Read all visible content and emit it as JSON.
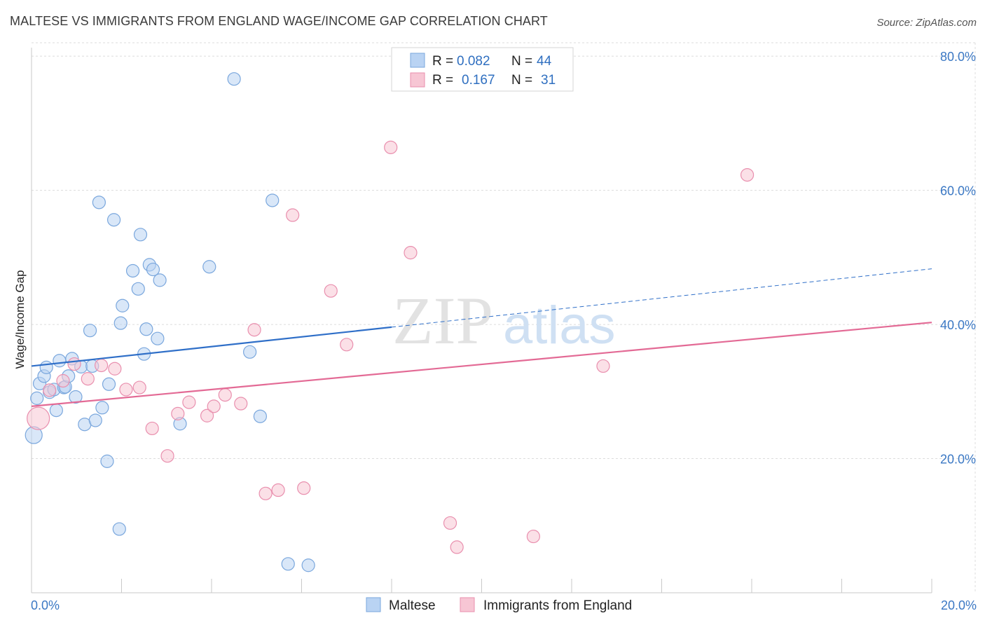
{
  "title": "MALTESE VS IMMIGRANTS FROM ENGLAND WAGE/INCOME GAP CORRELATION CHART",
  "source": "Source: ZipAtlas.com",
  "watermark": {
    "zip": "ZIP",
    "atlas": "atlas"
  },
  "colors": {
    "blue_fill": "#b9d3f3",
    "blue_stroke": "#7aa7dd",
    "blue_line": "#2f6fc8",
    "pink_fill": "#f7c6d4",
    "pink_stroke": "#e98fae",
    "pink_line": "#e36a95",
    "tick": "#3b78c4",
    "grid": "#dcdcdc"
  },
  "legend": [
    {
      "r_label": "R =",
      "r_value": "0.082",
      "n_label": "N =",
      "n_value": "44"
    },
    {
      "r_label": "R =",
      "r_value": "0.167",
      "n_label": "N =",
      "n_value": "31"
    }
  ],
  "chart_data": {
    "type": "scatter",
    "title": "MALTESE VS IMMIGRANTS FROM ENGLAND WAGE/INCOME GAP CORRELATION CHART",
    "xlabel": "",
    "ylabel": "Wage/Income Gap",
    "xlim": [
      0,
      20
    ],
    "ylim": [
      0,
      82
    ],
    "x_tick_labels": [
      "0.0%",
      "20.0%"
    ],
    "y_ticks": [
      20,
      40,
      60,
      80
    ],
    "y_tick_labels": [
      "20.0%",
      "40.0%",
      "60.0%",
      "80.0%"
    ],
    "grid": true,
    "series": [
      {
        "name": "Maltese",
        "color": "blue",
        "trend": {
          "x0": 0,
          "y0": 33.8,
          "x1": 8.0,
          "y1": 39.6,
          "dashed_to_x": 20,
          "dashed_to_y": 48.3
        },
        "points": [
          [
            0.05,
            23.5,
            12
          ],
          [
            0.12,
            29.0,
            9
          ],
          [
            0.18,
            31.2,
            9
          ],
          [
            0.28,
            32.3,
            9
          ],
          [
            0.33,
            33.6,
            9
          ],
          [
            0.4,
            29.9,
            9
          ],
          [
            0.5,
            30.3,
            9
          ],
          [
            0.55,
            27.2,
            9
          ],
          [
            0.62,
            34.6,
            9
          ],
          [
            0.72,
            30.6,
            9
          ],
          [
            0.75,
            30.7,
            9
          ],
          [
            0.82,
            32.3,
            9
          ],
          [
            0.9,
            34.9,
            9
          ],
          [
            0.98,
            29.2,
            9
          ],
          [
            1.1,
            33.7,
            9
          ],
          [
            1.18,
            25.1,
            9
          ],
          [
            1.3,
            39.1,
            9
          ],
          [
            1.35,
            33.8,
            9
          ],
          [
            1.42,
            25.7,
            9
          ],
          [
            1.5,
            58.2,
            9
          ],
          [
            1.57,
            27.6,
            9
          ],
          [
            1.68,
            19.6,
            9
          ],
          [
            1.72,
            31.1,
            9
          ],
          [
            1.83,
            55.6,
            9
          ],
          [
            1.95,
            9.5,
            9
          ],
          [
            1.98,
            40.2,
            9
          ],
          [
            2.02,
            42.8,
            9
          ],
          [
            2.25,
            48.0,
            9
          ],
          [
            2.37,
            45.3,
            9
          ],
          [
            2.42,
            53.4,
            9
          ],
          [
            2.5,
            35.6,
            9
          ],
          [
            2.55,
            39.3,
            9
          ],
          [
            2.62,
            48.9,
            9
          ],
          [
            2.7,
            48.2,
            9
          ],
          [
            2.8,
            37.9,
            9
          ],
          [
            2.85,
            46.6,
            9
          ],
          [
            3.3,
            25.2,
            9
          ],
          [
            3.95,
            48.6,
            9
          ],
          [
            4.5,
            76.6,
            9
          ],
          [
            4.85,
            35.9,
            9
          ],
          [
            5.08,
            26.3,
            9
          ],
          [
            5.35,
            58.5,
            9
          ],
          [
            5.7,
            4.3,
            9
          ],
          [
            6.15,
            4.1,
            9
          ]
        ]
      },
      {
        "name": "Immigrants from England",
        "color": "pink",
        "trend": {
          "x0": 0,
          "y0": 27.8,
          "x1": 20,
          "y1": 40.3
        },
        "points": [
          [
            0.15,
            26.0,
            16
          ],
          [
            0.4,
            30.2,
            9
          ],
          [
            0.7,
            31.6,
            9
          ],
          [
            0.95,
            34.1,
            9
          ],
          [
            1.25,
            31.9,
            9
          ],
          [
            1.55,
            33.9,
            9
          ],
          [
            1.85,
            33.4,
            9
          ],
          [
            2.1,
            30.3,
            9
          ],
          [
            2.4,
            30.6,
            9
          ],
          [
            2.68,
            24.5,
            9
          ],
          [
            3.02,
            20.4,
            9
          ],
          [
            3.25,
            26.7,
            9
          ],
          [
            3.5,
            28.4,
            9
          ],
          [
            3.9,
            26.4,
            9
          ],
          [
            4.05,
            27.8,
            9
          ],
          [
            4.3,
            29.5,
            9
          ],
          [
            4.65,
            28.2,
            9
          ],
          [
            4.95,
            39.2,
            9
          ],
          [
            5.2,
            14.8,
            9
          ],
          [
            5.48,
            15.3,
            9
          ],
          [
            5.8,
            56.3,
            9
          ],
          [
            6.05,
            15.6,
            9
          ],
          [
            6.65,
            45.0,
            9
          ],
          [
            7.0,
            37.0,
            9
          ],
          [
            7.98,
            66.4,
            9
          ],
          [
            8.42,
            50.7,
            9
          ],
          [
            9.3,
            10.4,
            9
          ],
          [
            9.45,
            6.8,
            9
          ],
          [
            11.15,
            8.4,
            9
          ],
          [
            12.7,
            33.8,
            9
          ],
          [
            15.9,
            62.3,
            9
          ]
        ]
      }
    ]
  }
}
